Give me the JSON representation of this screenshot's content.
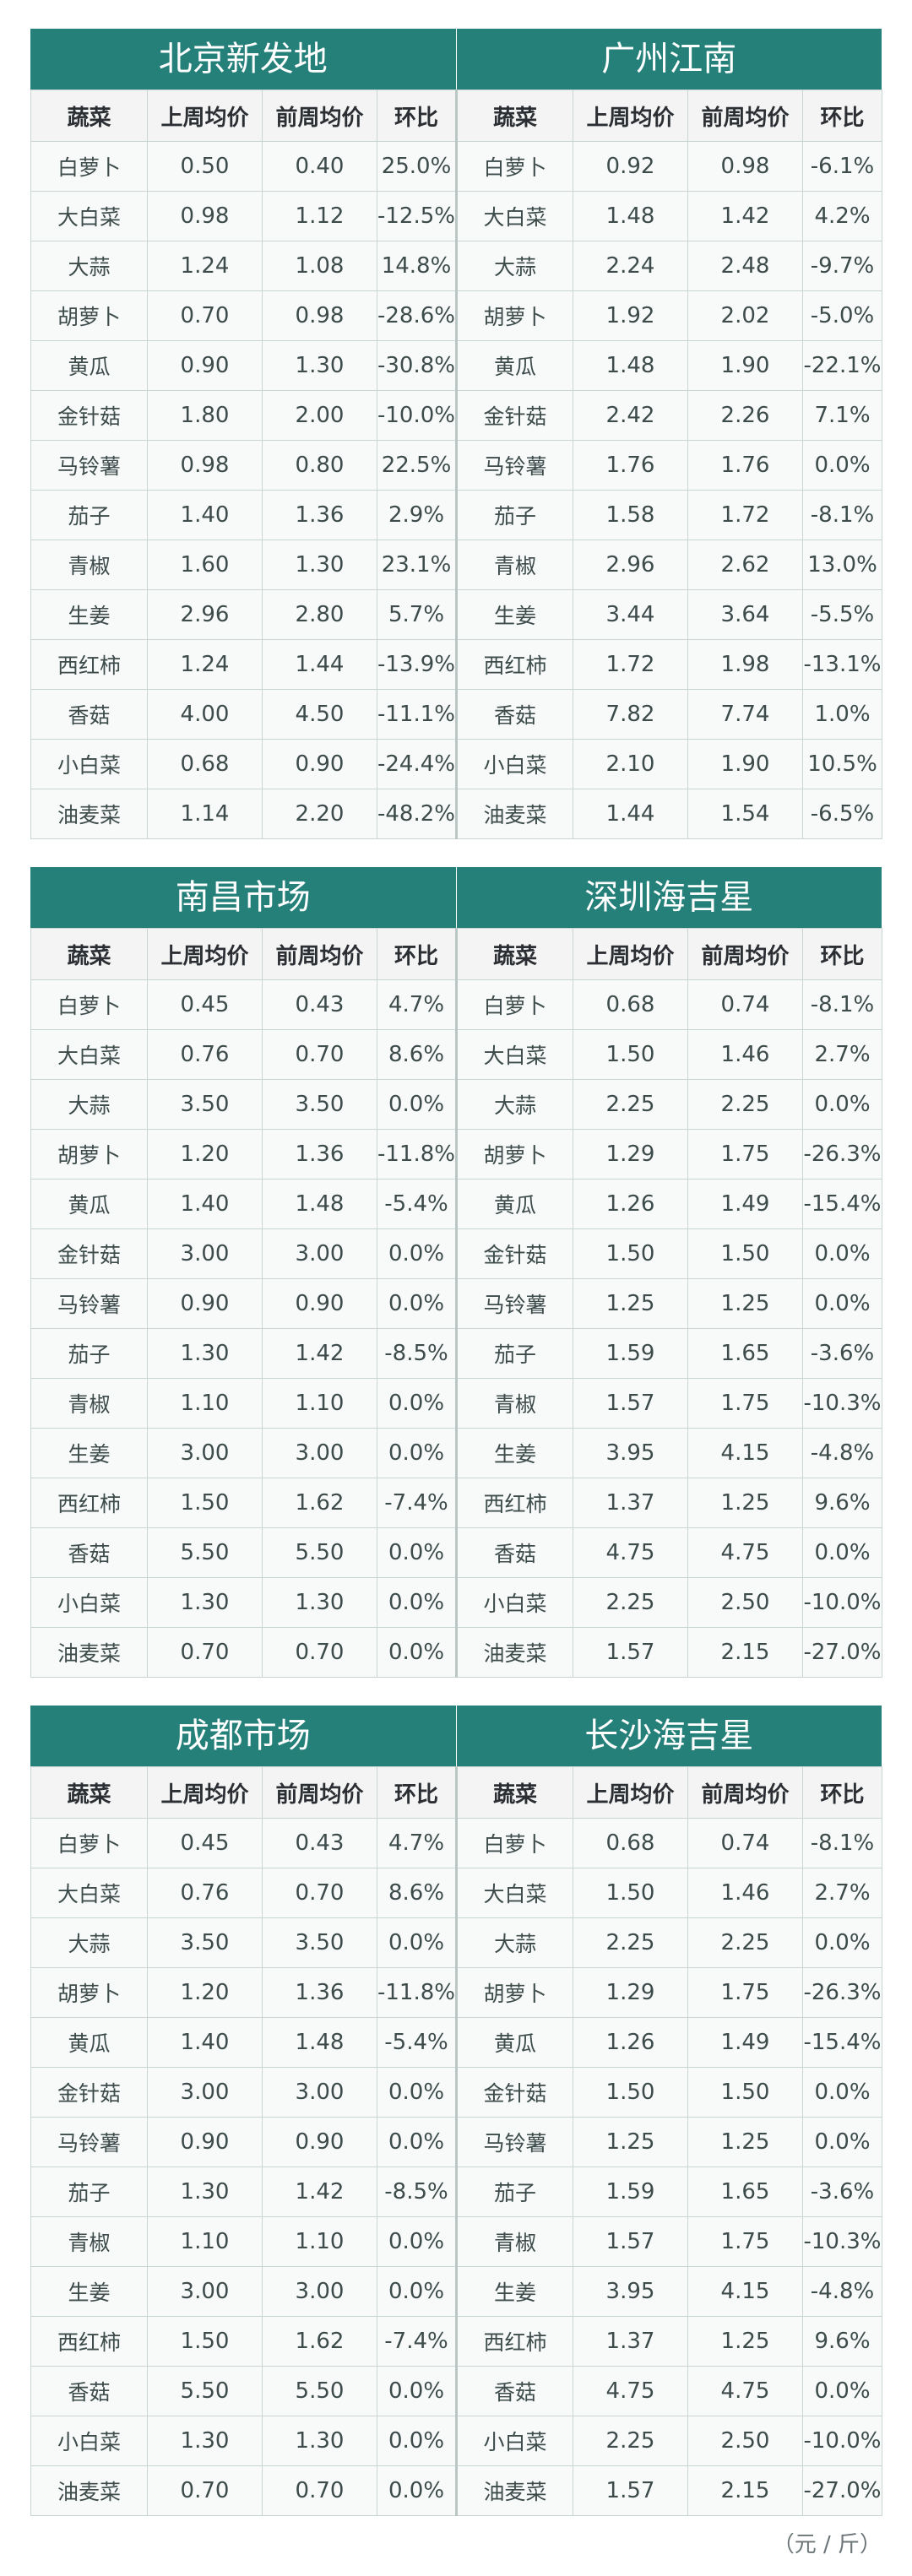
{
  "columns": {
    "veg": "蔬菜",
    "last_week": "上周均价",
    "prev_week": "前周均价",
    "change": "环比"
  },
  "sections": [
    {
      "left": {
        "title": "北京新发地",
        "rows": [
          [
            "白萝卜",
            "0.50",
            "0.40",
            "25.0%"
          ],
          [
            "大白菜",
            "0.98",
            "1.12",
            "-12.5%"
          ],
          [
            "大蒜",
            "1.24",
            "1.08",
            "14.8%"
          ],
          [
            "胡萝卜",
            "0.70",
            "0.98",
            "-28.6%"
          ],
          [
            "黄瓜",
            "0.90",
            "1.30",
            "-30.8%"
          ],
          [
            "金针菇",
            "1.80",
            "2.00",
            "-10.0%"
          ],
          [
            "马铃薯",
            "0.98",
            "0.80",
            "22.5%"
          ],
          [
            "茄子",
            "1.40",
            "1.36",
            "2.9%"
          ],
          [
            "青椒",
            "1.60",
            "1.30",
            "23.1%"
          ],
          [
            "生姜",
            "2.96",
            "2.80",
            "5.7%"
          ],
          [
            "西红柿",
            "1.24",
            "1.44",
            "-13.9%"
          ],
          [
            "香菇",
            "4.00",
            "4.50",
            "-11.1%"
          ],
          [
            "小白菜",
            "0.68",
            "0.90",
            "-24.4%"
          ],
          [
            "油麦菜",
            "1.14",
            "2.20",
            "-48.2%"
          ]
        ]
      },
      "right": {
        "title": "广州江南",
        "rows": [
          [
            "白萝卜",
            "0.92",
            "0.98",
            "-6.1%"
          ],
          [
            "大白菜",
            "1.48",
            "1.42",
            "4.2%"
          ],
          [
            "大蒜",
            "2.24",
            "2.48",
            "-9.7%"
          ],
          [
            "胡萝卜",
            "1.92",
            "2.02",
            "-5.0%"
          ],
          [
            "黄瓜",
            "1.48",
            "1.90",
            "-22.1%"
          ],
          [
            "金针菇",
            "2.42",
            "2.26",
            "7.1%"
          ],
          [
            "马铃薯",
            "1.76",
            "1.76",
            "0.0%"
          ],
          [
            "茄子",
            "1.58",
            "1.72",
            "-8.1%"
          ],
          [
            "青椒",
            "2.96",
            "2.62",
            "13.0%"
          ],
          [
            "生姜",
            "3.44",
            "3.64",
            "-5.5%"
          ],
          [
            "西红柿",
            "1.72",
            "1.98",
            "-13.1%"
          ],
          [
            "香菇",
            "7.82",
            "7.74",
            "1.0%"
          ],
          [
            "小白菜",
            "2.10",
            "1.90",
            "10.5%"
          ],
          [
            "油麦菜",
            "1.44",
            "1.54",
            "-6.5%"
          ]
        ]
      }
    },
    {
      "left": {
        "title": "南昌市场",
        "rows": [
          [
            "白萝卜",
            "0.45",
            "0.43",
            "4.7%"
          ],
          [
            "大白菜",
            "0.76",
            "0.70",
            "8.6%"
          ],
          [
            "大蒜",
            "3.50",
            "3.50",
            "0.0%"
          ],
          [
            "胡萝卜",
            "1.20",
            "1.36",
            "-11.8%"
          ],
          [
            "黄瓜",
            "1.40",
            "1.48",
            "-5.4%"
          ],
          [
            "金针菇",
            "3.00",
            "3.00",
            "0.0%"
          ],
          [
            "马铃薯",
            "0.90",
            "0.90",
            "0.0%"
          ],
          [
            "茄子",
            "1.30",
            "1.42",
            "-8.5%"
          ],
          [
            "青椒",
            "1.10",
            "1.10",
            "0.0%"
          ],
          [
            "生姜",
            "3.00",
            "3.00",
            "0.0%"
          ],
          [
            "西红柿",
            "1.50",
            "1.62",
            "-7.4%"
          ],
          [
            "香菇",
            "5.50",
            "5.50",
            "0.0%"
          ],
          [
            "小白菜",
            "1.30",
            "1.30",
            "0.0%"
          ],
          [
            "油麦菜",
            "0.70",
            "0.70",
            "0.0%"
          ]
        ]
      },
      "right": {
        "title": "深圳海吉星",
        "rows": [
          [
            "白萝卜",
            "0.68",
            "0.74",
            "-8.1%"
          ],
          [
            "大白菜",
            "1.50",
            "1.46",
            "2.7%"
          ],
          [
            "大蒜",
            "2.25",
            "2.25",
            "0.0%"
          ],
          [
            "胡萝卜",
            "1.29",
            "1.75",
            "-26.3%"
          ],
          [
            "黄瓜",
            "1.26",
            "1.49",
            "-15.4%"
          ],
          [
            "金针菇",
            "1.50",
            "1.50",
            "0.0%"
          ],
          [
            "马铃薯",
            "1.25",
            "1.25",
            "0.0%"
          ],
          [
            "茄子",
            "1.59",
            "1.65",
            "-3.6%"
          ],
          [
            "青椒",
            "1.57",
            "1.75",
            "-10.3%"
          ],
          [
            "生姜",
            "3.95",
            "4.15",
            "-4.8%"
          ],
          [
            "西红柿",
            "1.37",
            "1.25",
            "9.6%"
          ],
          [
            "香菇",
            "4.75",
            "4.75",
            "0.0%"
          ],
          [
            "小白菜",
            "2.25",
            "2.50",
            "-10.0%"
          ],
          [
            "油麦菜",
            "1.57",
            "2.15",
            "-27.0%"
          ]
        ]
      }
    },
    {
      "left": {
        "title": "成都市场",
        "rows": [
          [
            "白萝卜",
            "0.45",
            "0.43",
            "4.7%"
          ],
          [
            "大白菜",
            "0.76",
            "0.70",
            "8.6%"
          ],
          [
            "大蒜",
            "3.50",
            "3.50",
            "0.0%"
          ],
          [
            "胡萝卜",
            "1.20",
            "1.36",
            "-11.8%"
          ],
          [
            "黄瓜",
            "1.40",
            "1.48",
            "-5.4%"
          ],
          [
            "金针菇",
            "3.00",
            "3.00",
            "0.0%"
          ],
          [
            "马铃薯",
            "0.90",
            "0.90",
            "0.0%"
          ],
          [
            "茄子",
            "1.30",
            "1.42",
            "-8.5%"
          ],
          [
            "青椒",
            "1.10",
            "1.10",
            "0.0%"
          ],
          [
            "生姜",
            "3.00",
            "3.00",
            "0.0%"
          ],
          [
            "西红柿",
            "1.50",
            "1.62",
            "-7.4%"
          ],
          [
            "香菇",
            "5.50",
            "5.50",
            "0.0%"
          ],
          [
            "小白菜",
            "1.30",
            "1.30",
            "0.0%"
          ],
          [
            "油麦菜",
            "0.70",
            "0.70",
            "0.0%"
          ]
        ]
      },
      "right": {
        "title": "长沙海吉星",
        "rows": [
          [
            "白萝卜",
            "0.68",
            "0.74",
            "-8.1%"
          ],
          [
            "大白菜",
            "1.50",
            "1.46",
            "2.7%"
          ],
          [
            "大蒜",
            "2.25",
            "2.25",
            "0.0%"
          ],
          [
            "胡萝卜",
            "1.29",
            "1.75",
            "-26.3%"
          ],
          [
            "黄瓜",
            "1.26",
            "1.49",
            "-15.4%"
          ],
          [
            "金针菇",
            "1.50",
            "1.50",
            "0.0%"
          ],
          [
            "马铃薯",
            "1.25",
            "1.25",
            "0.0%"
          ],
          [
            "茄子",
            "1.59",
            "1.65",
            "-3.6%"
          ],
          [
            "青椒",
            "1.57",
            "1.75",
            "-10.3%"
          ],
          [
            "生姜",
            "3.95",
            "4.15",
            "-4.8%"
          ],
          [
            "西红柿",
            "1.37",
            "1.25",
            "9.6%"
          ],
          [
            "香菇",
            "4.75",
            "4.75",
            "0.0%"
          ],
          [
            "小白菜",
            "2.25",
            "2.50",
            "-10.0%"
          ],
          [
            "油麦菜",
            "1.57",
            "2.15",
            "-27.0%"
          ]
        ]
      }
    }
  ],
  "unit_note": "（元 / 斤）"
}
